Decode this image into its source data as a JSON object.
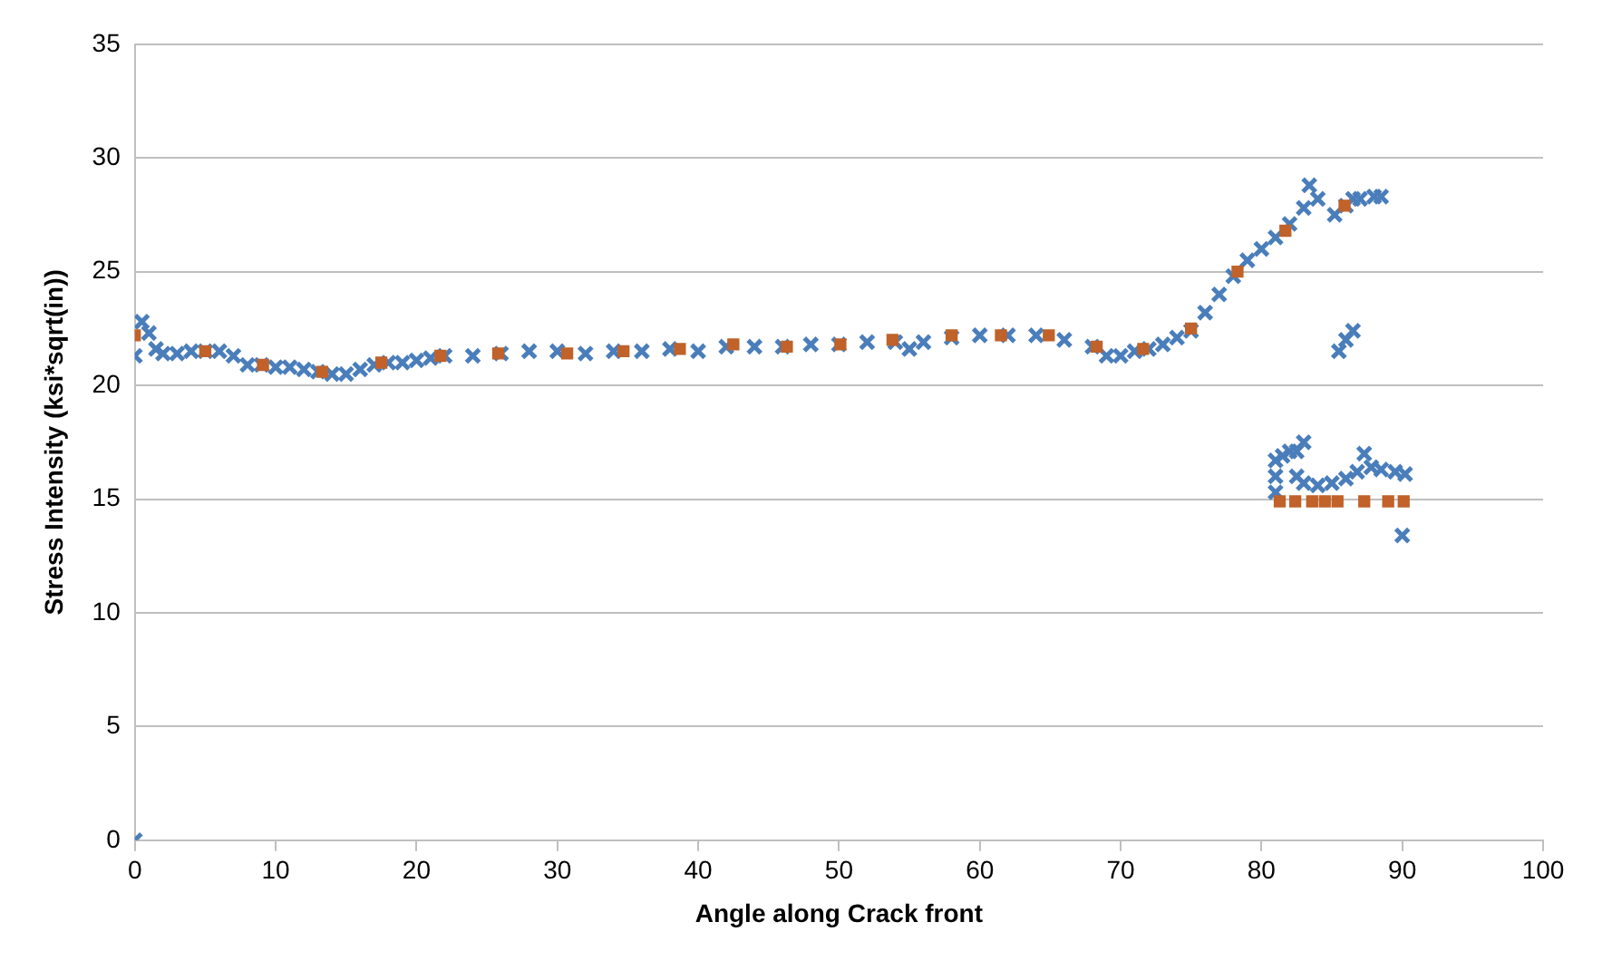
{
  "chart_data": {
    "type": "scatter",
    "xlabel": "Angle along Crack front",
    "ylabel": "Stress Intensity (ksi*sqrt(in))",
    "xlim": [
      0,
      100
    ],
    "xticks": [
      0,
      10,
      20,
      30,
      40,
      50,
      60,
      70,
      80,
      90,
      100
    ],
    "ylim": [
      0,
      35
    ],
    "yticks": [
      0,
      5,
      10,
      15,
      20,
      25,
      30,
      35
    ],
    "grid": "y",
    "legend": false,
    "series": [
      {
        "color": "#4a7ebb",
        "marker": "cross",
        "x": [
          0,
          0,
          0.5,
          1,
          1.5,
          2,
          3,
          4,
          5,
          6,
          7,
          8,
          9,
          10,
          11,
          12,
          13,
          14,
          15,
          16,
          17,
          18,
          19,
          20,
          21,
          22,
          24,
          26,
          28,
          30,
          32,
          34,
          36,
          38,
          40,
          42,
          44,
          46,
          48,
          50,
          52,
          54,
          55,
          56,
          58,
          60,
          62,
          64,
          66,
          68,
          69,
          70,
          71,
          72,
          73,
          74,
          75,
          76,
          77,
          78,
          79,
          80,
          81,
          82,
          83,
          83.4,
          84,
          85.2,
          86,
          86.5,
          87,
          88,
          88.5,
          85.5,
          86,
          86.5,
          81,
          81,
          81,
          81.5,
          82,
          82.5,
          83,
          82.5,
          83,
          84,
          85,
          86,
          86.8,
          87.3,
          87.8,
          88.5,
          89.5,
          90.2,
          90
        ],
        "values": [
          0,
          21.3,
          22.8,
          22.3,
          21.6,
          21.4,
          21.4,
          21.5,
          21.5,
          21.5,
          21.3,
          20.9,
          20.9,
          20.8,
          20.8,
          20.7,
          20.6,
          20.5,
          20.5,
          20.7,
          20.9,
          21.0,
          21.0,
          21.1,
          21.2,
          21.3,
          21.3,
          21.4,
          21.5,
          21.5,
          21.4,
          21.5,
          21.5,
          21.6,
          21.5,
          21.7,
          21.7,
          21.7,
          21.8,
          21.8,
          21.9,
          21.9,
          21.6,
          21.9,
          22.1,
          22.2,
          22.2,
          22.2,
          22.0,
          21.7,
          21.3,
          21.3,
          21.5,
          21.6,
          21.8,
          22.1,
          22.4,
          23.2,
          24.0,
          24.8,
          25.5,
          26.0,
          26.5,
          27.1,
          27.8,
          28.8,
          28.2,
          27.5,
          27.9,
          28.2,
          28.2,
          28.3,
          28.3,
          21.5,
          22.0,
          22.4,
          15.3,
          16.0,
          16.7,
          16.9,
          17.1,
          17.1,
          17.5,
          16.0,
          15.7,
          15.6,
          15.7,
          15.9,
          16.2,
          17.0,
          16.4,
          16.3,
          16.2,
          16.1,
          13.4
        ]
      },
      {
        "color": "#c0622a",
        "marker": "square",
        "x": [
          0,
          5.0,
          9.1,
          13.3,
          17.5,
          21.7,
          25.8,
          30.7,
          34.7,
          38.7,
          42.5,
          46.3,
          50.1,
          53.8,
          58.0,
          61.5,
          64.9,
          68.3,
          71.6,
          75.0,
          78.3,
          81.7,
          85.9,
          81.3,
          82.4,
          83.6,
          84.5,
          85.4,
          87.3,
          89.0,
          90.1
        ],
        "values": [
          22.2,
          21.5,
          20.9,
          20.6,
          21.0,
          21.3,
          21.4,
          21.4,
          21.5,
          21.6,
          21.8,
          21.7,
          21.8,
          22.0,
          22.2,
          22.2,
          22.2,
          21.7,
          21.6,
          22.5,
          25.0,
          26.8,
          27.9,
          14.9,
          14.9,
          14.9,
          14.9,
          14.9,
          14.9,
          14.9,
          14.9
        ]
      }
    ]
  }
}
